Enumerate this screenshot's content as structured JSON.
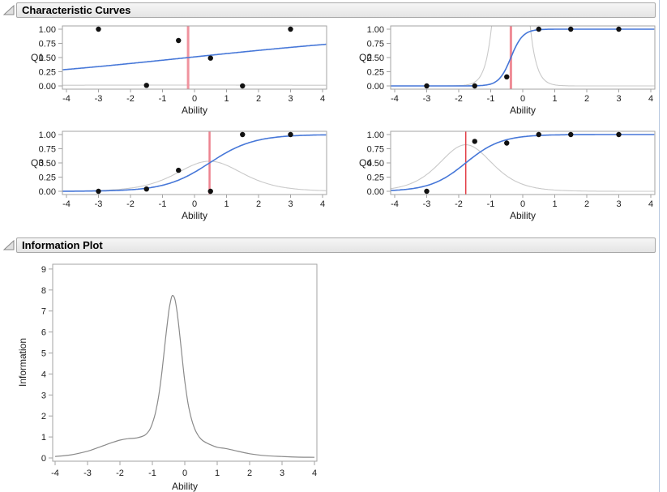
{
  "window": {
    "right_edge_color": "#b5c7df"
  },
  "sections": {
    "characteristic_curves": {
      "title": "Characteristic Curves"
    },
    "information_plot": {
      "title": "Information Plot"
    }
  },
  "style_colors": {
    "icc_curve_blue": "#4677d8",
    "item_information_gray": "#c9c9c9",
    "total_information_gray": "#8a8a8a",
    "axis_frame": "#a3a3a3",
    "point_black": "#111111"
  },
  "chart_data": {
    "icc_charts": [
      {
        "type": "line",
        "item": "Q1",
        "xlabel": "Ability",
        "xlim": [
          -4,
          4
        ],
        "ylim": [
          0,
          1
        ],
        "xticks": [
          -4,
          -3,
          -2,
          -1,
          0,
          1,
          2,
          3,
          4
        ],
        "ytick_labels": [
          "0.00",
          "0.25",
          "0.50",
          "0.75",
          "1.00"
        ],
        "logistic": {
          "a": 0.235,
          "b": -0.2
        },
        "item_information_peak": 0.014,
        "difficulty_line": {
          "x": -0.2,
          "color": "#f0939e",
          "width": 3
        },
        "observed_points": [
          [
            -3,
            1.0
          ],
          [
            -1.5,
            0.01
          ],
          [
            -0.5,
            0.8
          ],
          [
            0.5,
            0.49
          ],
          [
            1.5,
            0.0
          ],
          [
            3,
            1.0
          ]
        ],
        "curve_color": "#4677d8",
        "info_curve_color": "#c9c9c9"
      },
      {
        "type": "line",
        "item": "Q2",
        "xlabel": "Ability",
        "xlim": [
          -4,
          4
        ],
        "ylim": [
          0,
          1
        ],
        "xticks": [
          -4,
          -3,
          -2,
          -1,
          0,
          1,
          2,
          3,
          4
        ],
        "ytick_labels": [
          "0.00",
          "0.25",
          "0.50",
          "0.75",
          "1.00"
        ],
        "logistic": {
          "a": 5.35,
          "b": -0.37
        },
        "item_information_peak": 7.16,
        "difficulty_line": {
          "x": -0.37,
          "color": "#ef8a95",
          "width": 3
        },
        "observed_points": [
          [
            -3,
            0.0
          ],
          [
            -1.5,
            0.0
          ],
          [
            -0.5,
            0.16
          ],
          [
            0.5,
            1.0
          ],
          [
            1.5,
            1.0
          ],
          [
            3,
            1.0
          ]
        ],
        "curve_color": "#4677d8",
        "info_curve_color": "#c9c9c9"
      },
      {
        "type": "line",
        "item": "Q3",
        "xlabel": "Ability",
        "xlim": [
          -4,
          4
        ],
        "ylim": [
          0,
          1
        ],
        "xticks": [
          -4,
          -3,
          -2,
          -1,
          0,
          1,
          2,
          3,
          4
        ],
        "ytick_labels": [
          "0.00",
          "0.25",
          "0.50",
          "0.75",
          "1.00"
        ],
        "logistic": {
          "a": 1.45,
          "b": 0.47
        },
        "item_information_peak": 0.53,
        "difficulty_line": {
          "x": 0.47,
          "color": "#ed8390",
          "width": 2.5
        },
        "observed_points": [
          [
            -3,
            0.0
          ],
          [
            -1.5,
            0.04
          ],
          [
            -0.5,
            0.37
          ],
          [
            0.5,
            0.0
          ],
          [
            1.5,
            1.0
          ],
          [
            3,
            1.0
          ]
        ],
        "curve_color": "#4677d8",
        "info_curve_color": "#c9c9c9"
      },
      {
        "type": "line",
        "item": "Q4",
        "xlabel": "Ability",
        "xlim": [
          -4,
          4
        ],
        "ylim": [
          0,
          1
        ],
        "xticks": [
          -4,
          -3,
          -2,
          -1,
          0,
          1,
          2,
          3,
          4
        ],
        "ytick_labels": [
          "0.00",
          "0.25",
          "0.50",
          "0.75",
          "1.00"
        ],
        "logistic": {
          "a": 1.8,
          "b": -1.78
        },
        "item_information_peak": 0.82,
        "difficulty_line": {
          "x": -1.78,
          "color": "#e23d45",
          "width": 1.5
        },
        "observed_points": [
          [
            -3,
            0.0
          ],
          [
            -1.5,
            0.88
          ],
          [
            -0.5,
            0.85
          ],
          [
            0.5,
            1.0
          ],
          [
            1.5,
            1.0
          ],
          [
            3,
            1.0
          ]
        ],
        "curve_color": "#4677d8",
        "info_curve_color": "#c9c9c9"
      }
    ],
    "information_chart": {
      "type": "line",
      "title": "Information Plot",
      "xlabel": "Ability",
      "ylabel": "Information",
      "xlim": [
        -4,
        4
      ],
      "ylim": [
        0,
        9
      ],
      "xticks": [
        -4,
        -3,
        -2,
        -1,
        0,
        1,
        2,
        3,
        4
      ],
      "yticks": [
        0,
        1,
        2,
        3,
        4,
        5,
        6,
        7,
        8,
        9
      ],
      "peak": {
        "x": -0.37,
        "y": 7.7
      },
      "curve_color": "#8a8a8a",
      "curve": [
        [
          -4,
          0.07
        ],
        [
          -3.5,
          0.15
        ],
        [
          -3,
          0.32
        ],
        [
          -2.75,
          0.45
        ],
        [
          -2.5,
          0.59
        ],
        [
          -2.25,
          0.73
        ],
        [
          -2,
          0.85
        ],
        [
          -1.75,
          0.92
        ],
        [
          -1.5,
          0.95
        ],
        [
          -1.25,
          1.07
        ],
        [
          -1.1,
          1.3
        ],
        [
          -1,
          1.65
        ],
        [
          -0.9,
          2.18
        ],
        [
          -0.8,
          3.0
        ],
        [
          -0.7,
          4.17
        ],
        [
          -0.6,
          5.59
        ],
        [
          -0.5,
          6.91
        ],
        [
          -0.45,
          7.37
        ],
        [
          -0.4,
          7.7
        ],
        [
          -0.35,
          7.72
        ],
        [
          -0.3,
          7.53
        ],
        [
          -0.25,
          7.09
        ],
        [
          -0.2,
          6.49
        ],
        [
          -0.15,
          5.78
        ],
        [
          -0.1,
          5.06
        ],
        [
          -0.05,
          4.33
        ],
        [
          0,
          3.66
        ],
        [
          0.1,
          2.6
        ],
        [
          0.2,
          1.89
        ],
        [
          0.3,
          1.41
        ],
        [
          0.4,
          1.1
        ],
        [
          0.5,
          0.9
        ],
        [
          0.6,
          0.78
        ],
        [
          0.75,
          0.66
        ],
        [
          1,
          0.51
        ],
        [
          1.25,
          0.45
        ],
        [
          1.5,
          0.37
        ],
        [
          2,
          0.2
        ],
        [
          2.5,
          0.11
        ],
        [
          3,
          0.07
        ],
        [
          3.5,
          0.04
        ],
        [
          4,
          0.03
        ]
      ]
    }
  }
}
